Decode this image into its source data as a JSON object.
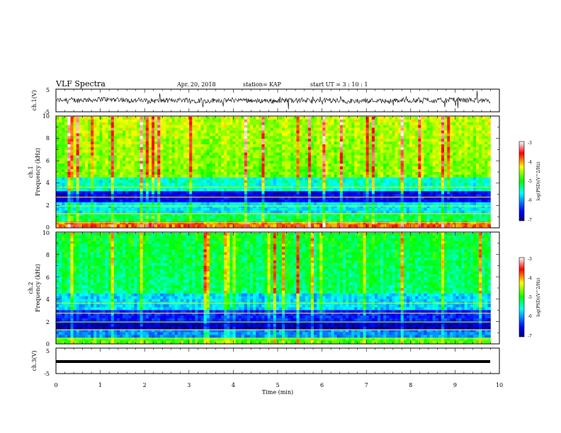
{
  "header": {
    "title": "VLF Spectra",
    "date": "Apr. 20, 2018",
    "station": "station= KAP",
    "start_ut": "start  UT =   3  : 10 : 1"
  },
  "chart_data": [
    {
      "type": "line",
      "name": "ch1-waveform",
      "ylabel": "ch.1(V)",
      "yticks": [
        "5",
        "-5"
      ],
      "ylim": [
        -5,
        5
      ],
      "xlim": [
        0,
        10
      ],
      "x_extent_min": 9.8,
      "note_values": "noisy signal, approximately between -2 and 2 V"
    },
    {
      "type": "heatmap",
      "name": "ch1-spectrogram",
      "ylabel": "ch.1\nFrequency (kHz)",
      "ylabel_line1": "ch.1",
      "ylabel_line2": "Frequency (kHz)",
      "yticks": [
        "0",
        "2",
        "4",
        "6",
        "8",
        "10"
      ],
      "ylim": [
        0,
        10
      ],
      "xlim": [
        0,
        10
      ],
      "colorbar": {
        "label": "log(PSD)(V^2/Hz)",
        "ticks": [
          "-3",
          "-4",
          "-5",
          "-6",
          "-7"
        ],
        "range": [
          -7,
          -3
        ],
        "colors": [
          "#000080",
          "#0000ff",
          "#00ffff",
          "#00ff00",
          "#ffff00",
          "#ff0000",
          "#ffffff"
        ]
      }
    },
    {
      "type": "heatmap",
      "name": "ch2-spectrogram",
      "ylabel_line1": "ch.2",
      "ylabel_line2": "Frequency (kHz)",
      "yticks": [
        "0",
        "2",
        "4",
        "6",
        "8",
        "10"
      ],
      "ylim": [
        0,
        10
      ],
      "xlim": [
        0,
        10
      ],
      "colorbar": {
        "label": "log(PSD)(V^2/Hz)",
        "ticks": [
          "-3",
          "-4",
          "-5",
          "-6",
          "-7"
        ],
        "range": [
          -7,
          -3
        ]
      }
    },
    {
      "type": "line",
      "name": "ch3-waveform",
      "ylabel": "ch.3(V)",
      "yticks": [
        "5",
        "-5"
      ],
      "ylim": [
        -5,
        5
      ],
      "xlim": [
        0,
        10
      ],
      "constant_value": 0
    }
  ],
  "xaxis": {
    "label": "Time (min)",
    "ticks": [
      "0",
      "1",
      "2",
      "3",
      "4",
      "5",
      "6",
      "7",
      "8",
      "9",
      "10"
    ],
    "range": [
      0,
      10
    ]
  }
}
